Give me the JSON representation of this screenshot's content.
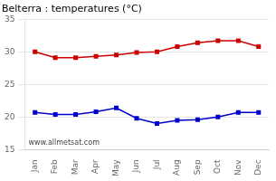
{
  "chart_data": {
    "type": "line",
    "title": "Belterra : temperatures (°C)",
    "categories": [
      "Jan",
      "Feb",
      "Mar",
      "Apr",
      "May",
      "Jun",
      "Jul",
      "Aug",
      "Sep",
      "Oct",
      "Nov",
      "Dec"
    ],
    "series": [
      {
        "color": "#cc0000",
        "marker": "square",
        "values": [
          30.0,
          29.1,
          29.1,
          29.3,
          29.5,
          29.9,
          30.0,
          30.8,
          31.4,
          31.7,
          31.7,
          30.8
        ]
      },
      {
        "color": "#0000cc",
        "marker": "square",
        "values": [
          20.7,
          20.4,
          20.4,
          20.8,
          21.4,
          19.8,
          19.0,
          19.5,
          19.6,
          20.0,
          20.7,
          20.7
        ]
      }
    ],
    "ylim": [
      15,
      35
    ],
    "yticks": [
      15,
      20,
      25,
      30,
      35
    ],
    "grid": "y",
    "annotations": [
      "www.allmetsat.com"
    ]
  }
}
